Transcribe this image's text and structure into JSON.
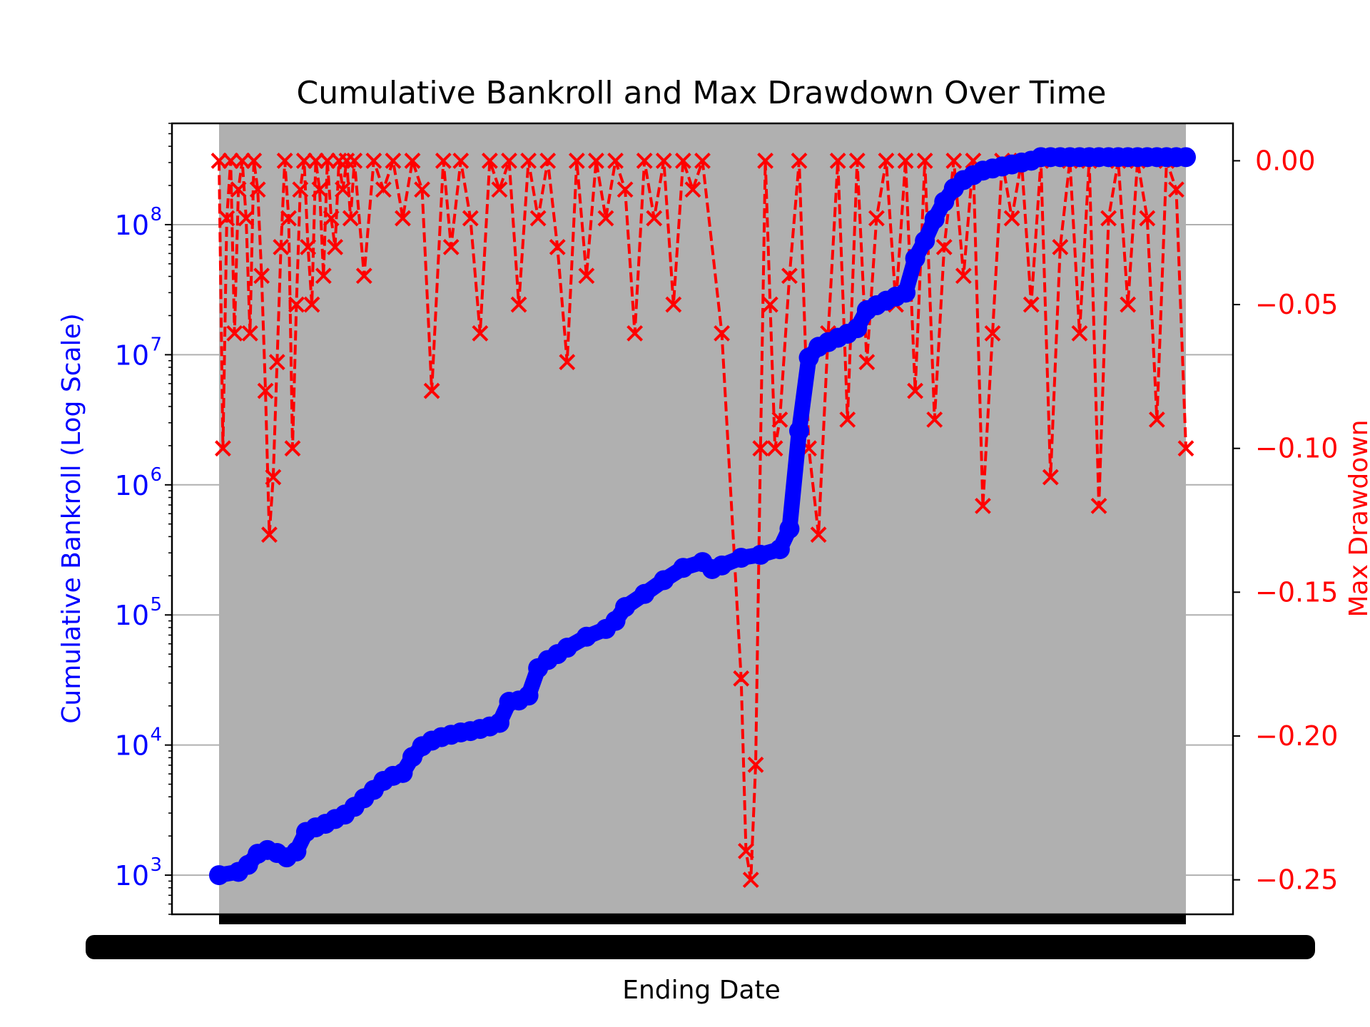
{
  "chart_data": {
    "type": "line",
    "title": "Cumulative Bankroll and Max Drawdown Over Time",
    "xlabel": "Ending Date",
    "x_tick_labels_note": "",
    "y_left": {
      "label": "Cumulative Bankroll (Log Scale)",
      "scale": "log",
      "ylim": [
        500,
        600000000
      ],
      "ticks": [
        {
          "base": "10",
          "exp": "3",
          "value": 1000
        },
        {
          "base": "10",
          "exp": "4",
          "value": 10000
        },
        {
          "base": "10",
          "exp": "5",
          "value": 100000
        },
        {
          "base": "10",
          "exp": "6",
          "value": 1000000
        },
        {
          "base": "10",
          "exp": "7",
          "value": 10000000
        },
        {
          "base": "10",
          "exp": "8",
          "value": 100000000
        }
      ],
      "color": "#0000ff"
    },
    "y_right": {
      "label": "Max Drawdown",
      "scale": "linear",
      "ylim": [
        -0.262,
        0.013
      ],
      "ticks": [
        {
          "label": "0.00",
          "value": 0.0
        },
        {
          "label": "−0.05",
          "value": -0.05
        },
        {
          "label": "−0.10",
          "value": -0.1
        },
        {
          "label": "−0.15",
          "value": -0.15
        },
        {
          "label": "−0.20",
          "value": -0.2
        },
        {
          "label": "−0.25",
          "value": -0.25
        }
      ],
      "color": "#ff0000"
    },
    "grid": "horizontal",
    "x_domain": [
      0,
      1000
    ],
    "series": [
      {
        "role": "bankroll",
        "marker": "circle",
        "color": "#0000ff",
        "x": [
          0,
          20,
          30,
          40,
          50,
          60,
          70,
          80,
          90,
          100,
          110,
          120,
          130,
          140,
          150,
          160,
          170,
          180,
          190,
          200,
          210,
          220,
          230,
          240,
          250,
          260,
          270,
          280,
          290,
          300,
          310,
          320,
          330,
          340,
          350,
          360,
          380,
          400,
          410,
          420,
          440,
          460,
          480,
          500,
          510,
          520,
          540,
          560,
          580,
          590,
          600,
          610,
          620,
          630,
          640,
          650,
          660,
          670,
          680,
          690,
          700,
          710,
          720,
          730,
          740,
          750,
          760,
          770,
          780,
          790,
          800,
          810,
          820,
          830,
          840,
          850,
          860,
          870,
          880,
          890,
          900,
          910,
          920,
          930,
          940,
          950,
          960,
          970,
          980,
          990,
          1000
        ],
        "values": [
          1000,
          1060,
          1200,
          1460,
          1560,
          1480,
          1370,
          1520,
          2150,
          2330,
          2480,
          2700,
          2920,
          3350,
          3900,
          4520,
          5300,
          5800,
          6100,
          8100,
          9800,
          10800,
          11500,
          12000,
          12500,
          12800,
          13300,
          13900,
          14800,
          21500,
          22000,
          24000,
          39000,
          45000,
          50000,
          56000,
          68000,
          78000,
          90000,
          115000,
          145000,
          185000,
          230000,
          255000,
          225000,
          240000,
          275000,
          290000,
          320000,
          460000,
          2600000,
          9500000,
          11500000,
          12500000,
          13500000,
          14500000,
          16000000,
          22000000,
          24000000,
          26000000,
          28000000,
          30000000,
          55000000,
          75000000,
          110000000,
          150000000,
          190000000,
          220000000,
          240000000,
          260000000,
          270000000,
          280000000,
          290000000,
          300000000,
          310000000,
          330000000,
          330000000,
          330000000,
          330000000,
          330000000,
          330000000,
          330000000,
          330000000,
          330000000,
          330000000,
          330000000,
          330000000,
          330000000,
          330000000,
          330000000,
          330000000
        ]
      },
      {
        "role": "drawdown",
        "marker": "x",
        "color": "#ff0000",
        "linestyle": "dashed",
        "x": [
          0,
          4,
          8,
          12,
          16,
          20,
          24,
          28,
          32,
          36,
          40,
          44,
          48,
          52,
          56,
          60,
          64,
          68,
          72,
          76,
          80,
          84,
          88,
          92,
          96,
          100,
          104,
          108,
          112,
          116,
          120,
          124,
          128,
          132,
          136,
          140,
          150,
          160,
          170,
          180,
          190,
          200,
          210,
          220,
          232,
          240,
          250,
          260,
          270,
          280,
          290,
          300,
          310,
          320,
          330,
          340,
          350,
          360,
          370,
          380,
          390,
          400,
          410,
          420,
          430,
          440,
          450,
          460,
          470,
          480,
          490,
          500,
          520,
          540,
          545,
          550,
          555,
          560,
          565,
          570,
          575,
          580,
          590,
          600,
          610,
          620,
          630,
          640,
          650,
          660,
          670,
          680,
          690,
          700,
          710,
          720,
          730,
          740,
          750,
          760,
          770,
          780,
          790,
          800,
          810,
          820,
          830,
          840,
          850,
          860,
          870,
          880,
          890,
          900,
          910,
          920,
          930,
          940,
          950,
          960,
          970,
          980,
          990,
          1000
        ],
        "values": [
          0.0,
          -0.1,
          -0.02,
          0.0,
          -0.06,
          -0.01,
          0.0,
          -0.02,
          -0.06,
          0.0,
          -0.01,
          -0.04,
          -0.08,
          -0.13,
          -0.11,
          -0.07,
          -0.03,
          0.0,
          -0.02,
          -0.1,
          -0.05,
          -0.01,
          0.0,
          -0.03,
          -0.05,
          0.0,
          -0.01,
          -0.04,
          0.0,
          -0.02,
          -0.03,
          0.0,
          -0.01,
          0.0,
          -0.02,
          0.0,
          -0.04,
          0.0,
          -0.01,
          0.0,
          -0.02,
          0.0,
          -0.01,
          -0.08,
          0.0,
          -0.03,
          0.0,
          -0.02,
          -0.06,
          0.0,
          -0.01,
          0.0,
          -0.05,
          0.0,
          -0.02,
          0.0,
          -0.03,
          -0.07,
          0.0,
          -0.04,
          0.0,
          -0.02,
          0.0,
          -0.01,
          -0.06,
          0.0,
          -0.02,
          0.0,
          -0.05,
          0.0,
          -0.01,
          0.0,
          -0.06,
          -0.18,
          -0.24,
          -0.25,
          -0.21,
          -0.1,
          0.0,
          -0.05,
          -0.1,
          -0.09,
          -0.04,
          0.0,
          -0.1,
          -0.13,
          -0.06,
          0.0,
          -0.09,
          0.0,
          -0.07,
          -0.02,
          0.0,
          -0.05,
          0.0,
          -0.08,
          0.0,
          -0.09,
          -0.03,
          0.0,
          -0.04,
          0.0,
          -0.12,
          -0.06,
          0.0,
          -0.02,
          0.0,
          -0.05,
          0.0,
          -0.11,
          -0.03,
          0.0,
          -0.06,
          0.0,
          -0.12,
          -0.02,
          0.0,
          -0.05,
          0.0,
          -0.02,
          -0.09,
          0.0,
          -0.01,
          -0.1
        ]
      }
    ]
  }
}
